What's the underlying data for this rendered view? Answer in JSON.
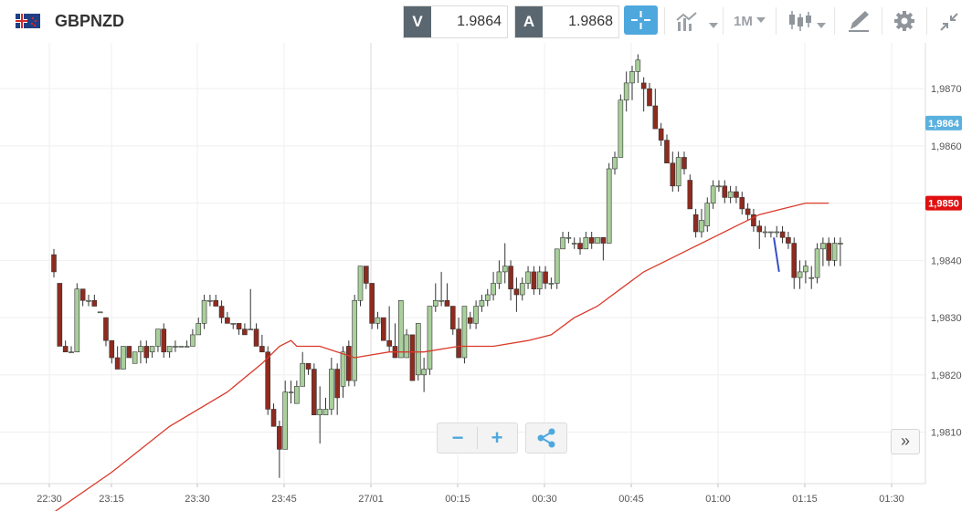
{
  "header": {
    "symbol": "GBPNZD",
    "flag_icon": "uk-nz-flag-icon",
    "bid_label": "V",
    "bid_value": "1.9864",
    "ask_label": "A",
    "ask_value": "1.9868",
    "timeframe": "1M"
  },
  "colors": {
    "up": "#a9cf9b",
    "down": "#8e2b1f",
    "ma": "#d93a2b",
    "current_price_badge": "#5bb1de",
    "ma_badge": "#e01010",
    "accent": "#4ea8de"
  },
  "controls": {
    "zoom_out": "−",
    "zoom_in": "+",
    "scroll_right": "»"
  },
  "chart_data": {
    "type": "candlestick",
    "interval": "1M",
    "ylim": [
      1.9801,
      1.9878
    ],
    "y_ticks": [
      "1,9810",
      "1,9820",
      "1,9830",
      "1,9840",
      "1,9850",
      "1,9860",
      "1,9870"
    ],
    "x_ticks": [
      "22:30",
      "23:15",
      "23:30",
      "23:45",
      "27/01",
      "00:15",
      "00:30",
      "00:45",
      "01:00",
      "01:15",
      "01:30"
    ],
    "current_price_label": "1,9864",
    "ma_price_label": "1,9850",
    "grid": true,
    "candles": [
      [
        1.9841,
        1.9842,
        1.9837,
        1.9838
      ],
      [
        1.9836,
        1.9836,
        1.9825,
        1.9825
      ],
      [
        1.9825,
        1.9826,
        1.9824,
        1.9824
      ],
      [
        1.9824,
        1.9825,
        1.9824,
        1.9824
      ],
      [
        1.9824,
        1.9836,
        1.9824,
        1.9835
      ],
      [
        1.9835,
        1.9835,
        1.9832,
        1.9833
      ],
      [
        1.9833,
        1.9834,
        1.9832,
        1.9833
      ],
      [
        1.9833,
        1.9834,
        1.9832,
        1.9832
      ],
      [
        1.9831,
        1.9831,
        1.9831,
        1.9831
      ],
      [
        1.983,
        1.983,
        1.9825,
        1.9826
      ],
      [
        1.9826,
        1.9826,
        1.9822,
        1.9823
      ],
      [
        1.9823,
        1.9825,
        1.9821,
        1.9821
      ],
      [
        1.9821,
        1.9825,
        1.9821,
        1.9825
      ],
      [
        1.9825,
        1.9825,
        1.9823,
        1.9823
      ],
      [
        1.9822,
        1.9824,
        1.9822,
        1.9824
      ],
      [
        1.9824,
        1.9826,
        1.9822,
        1.9825
      ],
      [
        1.9825,
        1.9826,
        1.9822,
        1.9823
      ],
      [
        1.9824,
        1.9825,
        1.9823,
        1.9825
      ],
      [
        1.9825,
        1.9828,
        1.9824,
        1.9828
      ],
      [
        1.9828,
        1.9829,
        1.9823,
        1.9824
      ],
      [
        1.9824,
        1.9825,
        1.9823,
        1.9825
      ],
      [
        1.9825,
        1.9826,
        1.9824,
        1.9825
      ],
      [
        1.9825,
        1.9825,
        1.9825,
        1.9825
      ],
      [
        1.9825,
        1.9826,
        1.9825,
        1.9825
      ],
      [
        1.9825,
        1.9828,
        1.9825,
        1.9827
      ],
      [
        1.9827,
        1.983,
        1.9827,
        1.9829
      ],
      [
        1.9829,
        1.9834,
        1.9828,
        1.9833
      ],
      [
        1.9833,
        1.9834,
        1.9832,
        1.9833
      ],
      [
        1.9833,
        1.9834,
        1.9832,
        1.9832
      ],
      [
        1.9832,
        1.9833,
        1.9829,
        1.983
      ],
      [
        1.983,
        1.9831,
        1.9829,
        1.9829
      ],
      [
        1.9829,
        1.9829,
        1.9828,
        1.9829
      ],
      [
        1.9829,
        1.9829,
        1.9827,
        1.9828
      ],
      [
        1.9828,
        1.9829,
        1.9827,
        1.9827
      ],
      [
        1.9828,
        1.9835,
        1.9828,
        1.9828
      ],
      [
        1.9828,
        1.9829,
        1.9825,
        1.9825
      ],
      [
        1.9825,
        1.9827,
        1.9824,
        1.9824
      ],
      [
        1.9824,
        1.9825,
        1.9813,
        1.9814
      ],
      [
        1.9814,
        1.9815,
        1.9811,
        1.9811
      ],
      [
        1.9811,
        1.9812,
        1.9802,
        1.9807
      ],
      [
        1.9807,
        1.9819,
        1.9807,
        1.9817
      ],
      [
        1.9817,
        1.9819,
        1.9815,
        1.9817
      ],
      [
        1.9815,
        1.9819,
        1.9815,
        1.9818
      ],
      [
        1.9818,
        1.9824,
        1.9818,
        1.9822
      ],
      [
        1.9822,
        1.9822,
        1.982,
        1.9821
      ],
      [
        1.9821,
        1.9822,
        1.9813,
        1.9813
      ],
      [
        1.9813,
        1.9818,
        1.9808,
        1.9814
      ],
      [
        1.9813,
        1.9816,
        1.9813,
        1.9814
      ],
      [
        1.9814,
        1.9823,
        1.9813,
        1.9821
      ],
      [
        1.9821,
        1.9822,
        1.9813,
        1.9816
      ],
      [
        1.9818,
        1.9825,
        1.9816,
        1.9824
      ],
      [
        1.9825,
        1.9826,
        1.9818,
        1.9819
      ],
      [
        1.9819,
        1.9834,
        1.9818,
        1.9833
      ],
      [
        1.9833,
        1.9839,
        1.9832,
        1.9839
      ],
      [
        1.9839,
        1.9839,
        1.9835,
        1.9836
      ],
      [
        1.9836,
        1.9836,
        1.9828,
        1.9829
      ],
      [
        1.9829,
        1.9831,
        1.9828,
        1.983
      ],
      [
        1.983,
        1.983,
        1.9826,
        1.9826
      ],
      [
        1.9826,
        1.9832,
        1.9824,
        1.9825
      ],
      [
        1.9825,
        1.9829,
        1.9823,
        1.9823
      ],
      [
        1.9823,
        1.9833,
        1.9823,
        1.9833
      ],
      [
        1.9823,
        1.9828,
        1.9823,
        1.9827
      ],
      [
        1.9827,
        1.9827,
        1.9819,
        1.9819
      ],
      [
        1.982,
        1.9829,
        1.9819,
        1.9829
      ],
      [
        1.982,
        1.9823,
        1.9817,
        1.9821
      ],
      [
        1.9821,
        1.9832,
        1.982,
        1.9832
      ],
      [
        1.9832,
        1.9836,
        1.9831,
        1.9833
      ],
      [
        1.9833,
        1.9838,
        1.9832,
        1.9833
      ],
      [
        1.9833,
        1.9836,
        1.9832,
        1.9832
      ],
      [
        1.9832,
        1.9832,
        1.9827,
        1.9828
      ],
      [
        1.9828,
        1.983,
        1.9823,
        1.9823
      ],
      [
        1.9823,
        1.9832,
        1.9822,
        1.9832
      ],
      [
        1.983,
        1.9831,
        1.9828,
        1.9829
      ],
      [
        1.9829,
        1.9833,
        1.9828,
        1.9832
      ],
      [
        1.9832,
        1.9834,
        1.9831,
        1.9833
      ],
      [
        1.9833,
        1.9835,
        1.9832,
        1.9834
      ],
      [
        1.9834,
        1.9838,
        1.9833,
        1.9836
      ],
      [
        1.9836,
        1.984,
        1.9835,
        1.9838
      ],
      [
        1.9838,
        1.9843,
        1.9836,
        1.9839
      ],
      [
        1.9839,
        1.984,
        1.9833,
        1.9835
      ],
      [
        1.9835,
        1.9837,
        1.9831,
        1.9834
      ],
      [
        1.9834,
        1.9837,
        1.9833,
        1.9836
      ],
      [
        1.9836,
        1.9839,
        1.9835,
        1.9838
      ],
      [
        1.9838,
        1.9839,
        1.9834,
        1.9835
      ],
      [
        1.9835,
        1.9839,
        1.9834,
        1.9838
      ],
      [
        1.9838,
        1.9839,
        1.9835,
        1.9836
      ],
      [
        1.9836,
        1.9837,
        1.9835,
        1.9836
      ],
      [
        1.9836,
        1.9842,
        1.9835,
        1.9842
      ],
      [
        1.9842,
        1.9845,
        1.9842,
        1.9844
      ],
      [
        1.9844,
        1.9845,
        1.9843,
        1.9844
      ],
      [
        1.9843,
        1.9844,
        1.9842,
        1.9843
      ],
      [
        1.9843,
        1.9844,
        1.9841,
        1.9842
      ],
      [
        1.9842,
        1.9845,
        1.9842,
        1.9844
      ],
      [
        1.9844,
        1.9845,
        1.9842,
        1.9843
      ],
      [
        1.9843,
        1.9844,
        1.9843,
        1.9844
      ],
      [
        1.9844,
        1.9844,
        1.984,
        1.9843
      ],
      [
        1.9843,
        1.9857,
        1.9843,
        1.9856
      ],
      [
        1.9856,
        1.9859,
        1.9855,
        1.9858
      ],
      [
        1.9858,
        1.9869,
        1.9858,
        1.9868
      ],
      [
        1.9868,
        1.9873,
        1.9866,
        1.9871
      ],
      [
        1.9871,
        1.9874,
        1.9868,
        1.9873
      ],
      [
        1.9873,
        1.9876,
        1.9871,
        1.9875
      ],
      [
        1.9871,
        1.9872,
        1.9866,
        1.987
      ],
      [
        1.987,
        1.9871,
        1.9867,
        1.9867
      ],
      [
        1.9867,
        1.987,
        1.9863,
        1.9863
      ],
      [
        1.9863,
        1.9864,
        1.986,
        1.9861
      ],
      [
        1.9861,
        1.9862,
        1.9857,
        1.9857
      ],
      [
        1.9857,
        1.9859,
        1.9852,
        1.9853
      ],
      [
        1.9853,
        1.9859,
        1.9852,
        1.9858
      ],
      [
        1.9858,
        1.9859,
        1.9855,
        1.9856
      ],
      [
        1.9854,
        1.9855,
        1.9849,
        1.9849
      ],
      [
        1.9848,
        1.9849,
        1.9844,
        1.9845
      ],
      [
        1.9845,
        1.9849,
        1.9844,
        1.9847
      ],
      [
        1.9846,
        1.9851,
        1.9845,
        1.985
      ],
      [
        1.985,
        1.9854,
        1.9849,
        1.9853
      ],
      [
        1.9853,
        1.9854,
        1.9852,
        1.9853
      ],
      [
        1.9853,
        1.9854,
        1.985,
        1.9851
      ],
      [
        1.9851,
        1.9853,
        1.985,
        1.9852
      ],
      [
        1.9852,
        1.9853,
        1.985,
        1.9851
      ],
      [
        1.9851,
        1.9852,
        1.9848,
        1.9849
      ],
      [
        1.9849,
        1.985,
        1.9847,
        1.9848
      ],
      [
        1.9848,
        1.9849,
        1.9845,
        1.9846
      ],
      [
        1.9846,
        1.9847,
        1.9842,
        1.9845
      ],
      [
        1.9845,
        1.9846,
        1.9844,
        1.9845
      ],
      [
        1.9845,
        1.9845,
        1.9844,
        1.9845
      ],
      [
        1.9845,
        1.9846,
        1.9844,
        1.9845
      ],
      [
        1.9845,
        1.9846,
        1.9843,
        1.9844
      ],
      [
        1.9844,
        1.9845,
        1.9842,
        1.9843
      ],
      [
        1.9843,
        1.9844,
        1.9835,
        1.9837
      ],
      [
        1.9837,
        1.984,
        1.9835,
        1.9838
      ],
      [
        1.9838,
        1.984,
        1.9836,
        1.9839
      ],
      [
        1.9837,
        1.9839,
        1.9835,
        1.9837
      ],
      [
        1.9837,
        1.9843,
        1.9836,
        1.9842
      ],
      [
        1.9842,
        1.9844,
        1.9839,
        1.9843
      ],
      [
        1.9843,
        1.9844,
        1.9839,
        1.984
      ],
      [
        1.984,
        1.9844,
        1.9839,
        1.9843
      ],
      [
        1.9843,
        1.9844,
        1.9839,
        1.9843
      ]
    ],
    "moving_average": [
      [
        0,
        1.9796
      ],
      [
        10,
        1.9803
      ],
      [
        20,
        1.9811
      ],
      [
        30,
        1.9817
      ],
      [
        36,
        1.9822
      ],
      [
        39,
        1.9825
      ],
      [
        41,
        1.9826
      ],
      [
        42,
        1.9825
      ],
      [
        46,
        1.9825
      ],
      [
        52,
        1.9823
      ],
      [
        58,
        1.9824
      ],
      [
        64,
        1.9824
      ],
      [
        70,
        1.9825
      ],
      [
        76,
        1.9825
      ],
      [
        82,
        1.9826
      ],
      [
        86,
        1.9827
      ],
      [
        90,
        1.983
      ],
      [
        94,
        1.9832
      ],
      [
        98,
        1.9835
      ],
      [
        102,
        1.9838
      ],
      [
        106,
        1.984
      ],
      [
        110,
        1.9842
      ],
      [
        114,
        1.9844
      ],
      [
        118,
        1.9846
      ],
      [
        122,
        1.9848
      ],
      [
        126,
        1.9849
      ],
      [
        130,
        1.985
      ],
      [
        134,
        1.985
      ]
    ],
    "partial_line": [
      [
        124.5,
        1.9844
      ],
      [
        125.4,
        1.9838
      ]
    ]
  }
}
